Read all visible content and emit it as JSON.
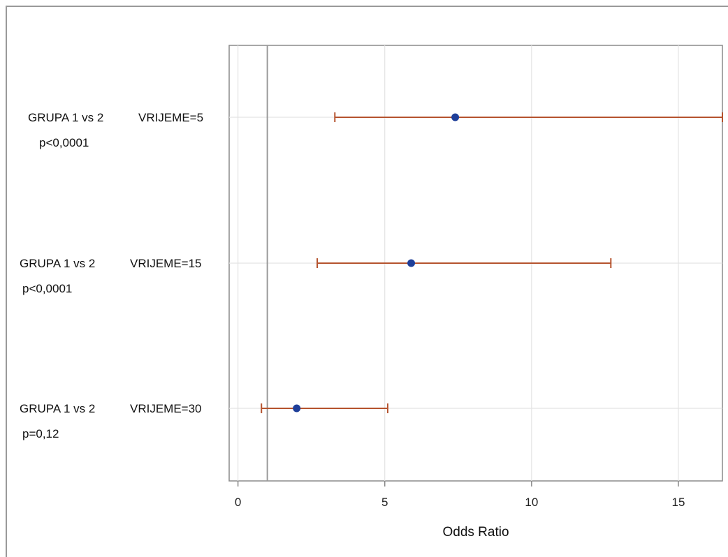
{
  "chart_data": {
    "type": "forest",
    "xlabel": "Odds Ratio",
    "xlim": [
      -0.3,
      16.5
    ],
    "xticks": [
      0,
      5,
      10,
      15
    ],
    "reference_line": 1,
    "grid": true,
    "colors": {
      "point": "#1f3f99",
      "ci": "#b5532e",
      "grid": "#e3e3e3",
      "axis": "#888888",
      "ref": "#9a9a9a"
    },
    "rows": [
      {
        "label": "GRUPA 1 vs 2",
        "time": "VRIJEME=5",
        "p": "p<0,0001",
        "or": 7.4,
        "lower": 3.3,
        "upper": 16.5
      },
      {
        "label": "GRUPA 1 vs 2",
        "time": "VRIJEME=15",
        "p": "p<0,0001",
        "or": 5.9,
        "lower": 2.7,
        "upper": 12.7
      },
      {
        "label": "GRUPA 1 vs 2",
        "time": "VRIJEME=30",
        "p": "p=0,12",
        "or": 2.0,
        "lower": 0.8,
        "upper": 5.1
      }
    ]
  }
}
